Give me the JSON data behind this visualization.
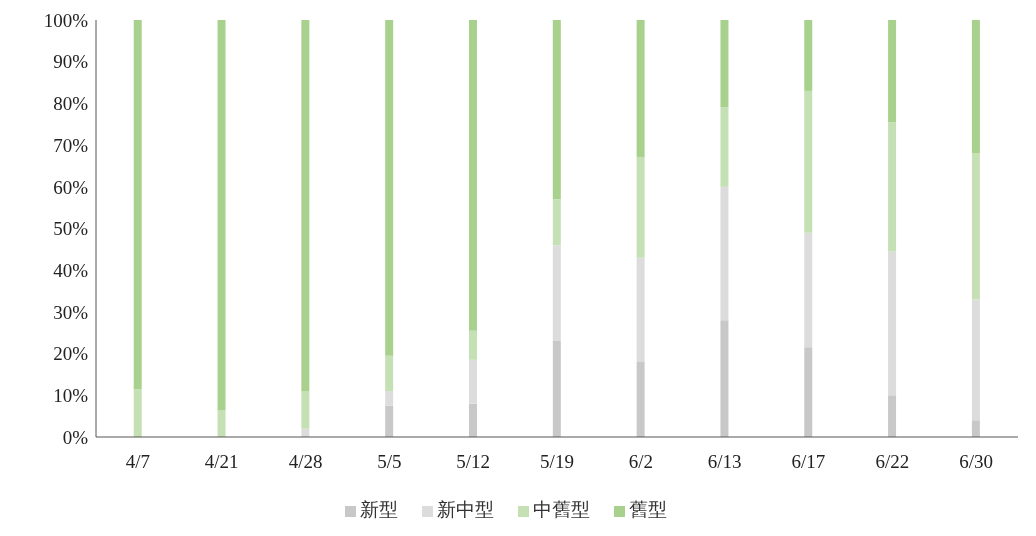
{
  "chart_data": {
    "type": "bar",
    "stacked": true,
    "categories": [
      "4/7",
      "4/21",
      "4/28",
      "5/5",
      "5/12",
      "5/19",
      "6/2",
      "6/13",
      "6/17",
      "6/22",
      "6/30"
    ],
    "series": [
      {
        "name": "新型",
        "color": "#c8c8c8",
        "values": [
          0,
          0,
          0,
          7.5,
          8,
          23,
          18,
          28,
          21.5,
          10,
          4
        ]
      },
      {
        "name": "新中型",
        "color": "#dcdcdc",
        "values": [
          0,
          0,
          2,
          3.5,
          10.5,
          23,
          25,
          32,
          27.5,
          34.5,
          29
        ]
      },
      {
        "name": "中舊型",
        "color": "#c5e0b4",
        "values": [
          11.5,
          6.5,
          9,
          8.5,
          7,
          11,
          24,
          19,
          34,
          31,
          35
        ]
      },
      {
        "name": "舊型",
        "color": "#a9d18e",
        "values": [
          88.5,
          93.5,
          89,
          80.5,
          74.5,
          43,
          33,
          21,
          17,
          24.5,
          32
        ]
      }
    ],
    "ylim": [
      0,
      100
    ],
    "yticks": [
      {
        "value": 0,
        "label": "0%"
      },
      {
        "value": 10,
        "label": "10%"
      },
      {
        "value": 20,
        "label": "20%"
      },
      {
        "value": 30,
        "label": "30%"
      },
      {
        "value": 40,
        "label": "40%"
      },
      {
        "value": 50,
        "label": "50%"
      },
      {
        "value": 60,
        "label": "60%"
      },
      {
        "value": 70,
        "label": "70%"
      },
      {
        "value": 80,
        "label": "80%"
      },
      {
        "value": 90,
        "label": "90%"
      },
      {
        "value": 100,
        "label": "100%"
      }
    ],
    "grid": false,
    "legend": "bottom"
  }
}
